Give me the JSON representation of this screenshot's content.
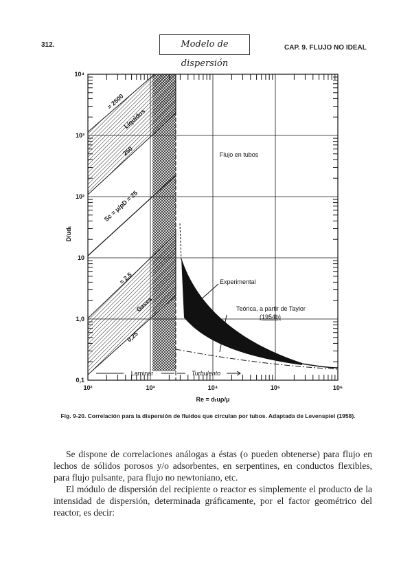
{
  "header": {
    "page_number": "312.",
    "handwritten_note": "Modelo de dispersión",
    "chapter": "CAP. 9. FLUJO NO IDEAL"
  },
  "figure": {
    "y_axis_label": "D/udₜ",
    "x_axis_label": "Re = dₜuρ/μ",
    "y_tick_labels": [
      "10⁴",
      "10³",
      "10²",
      "10",
      "1,0",
      "0,1"
    ],
    "x_tick_labels": [
      "10²",
      "10³",
      "10⁴",
      "10⁵",
      "10⁶"
    ],
    "annotations": {
      "flow_in_tubes": "Flujo en tubos",
      "sc_2500": "= 2500",
      "liquids": "Líquidos",
      "sc_250": "250",
      "sc_25": "Sc = μ/ρD = 25",
      "sc_2_5": "= 2,5",
      "gases": "Gases",
      "sc_0_25": "0,25",
      "experimental": "Experimental",
      "theoretical": "Teórica, a partir de Taylor",
      "theoretical_ref": "(1954b)",
      "laminar": "Laminar",
      "turbulent": "Turbulento"
    },
    "caption": "Fig. 9-20. Correlación para la dispersión de fluidos que circulan por tubos. Adaptada de Levenspiel (1958)."
  },
  "body": {
    "paragraphs": [
      "Se dispone de correlaciones análogas a éstas (o pueden obtenerse) para flujo en lechos de sólidos porosos y/o adsorbentes, en serpentines, en conductos flexibles, para flujo pulsante, para flujo no newtoniano, etc.",
      "El módulo de dispersión del recipiente o reactor es simplemente el producto de la intensidad de dispersión, determinada gráficamente, por el factor geométrico del reactor, es decir:"
    ]
  }
}
